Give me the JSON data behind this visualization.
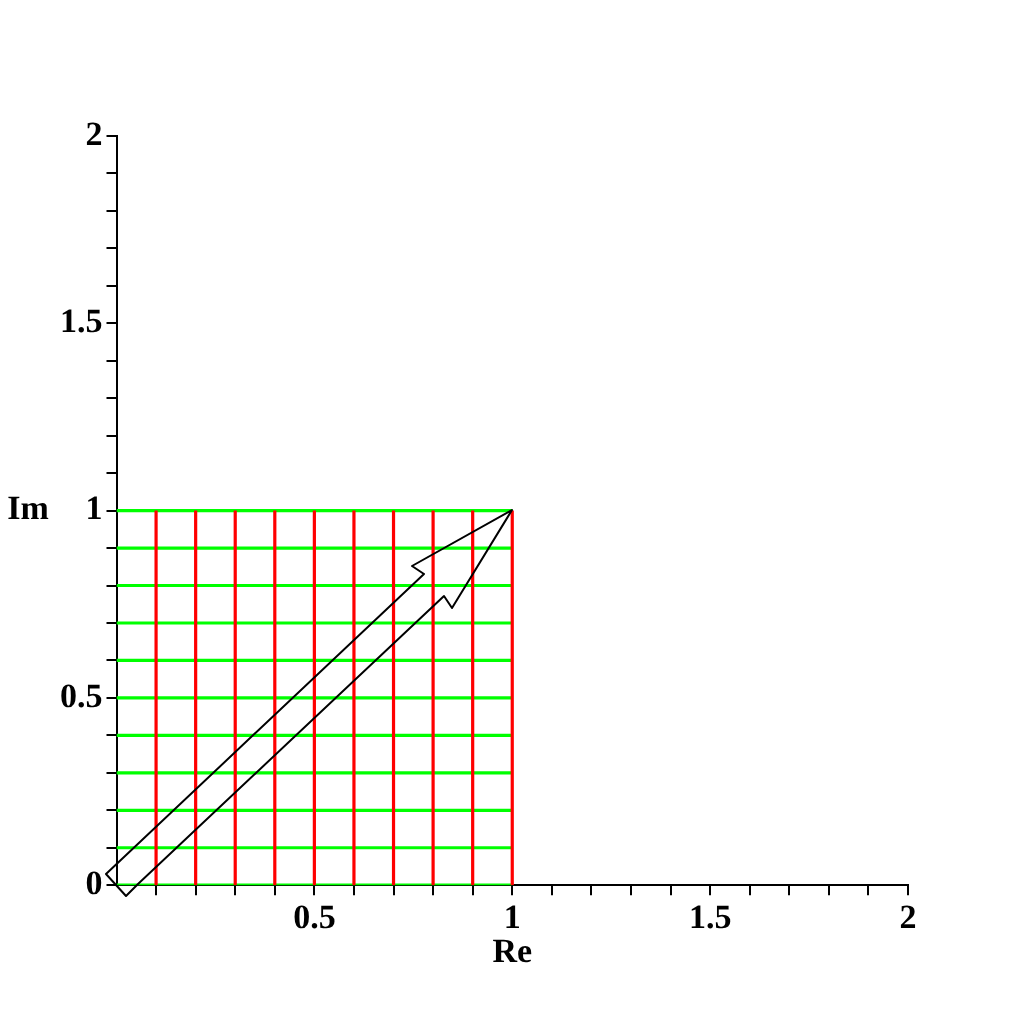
{
  "chart_data": {
    "type": "line",
    "xlabel": "Re",
    "ylabel": "Im",
    "xlim": [
      0,
      2
    ],
    "ylim": [
      0,
      2
    ],
    "xticks": [
      {
        "value": 0.1,
        "label": null
      },
      {
        "value": 0.2,
        "label": null
      },
      {
        "value": 0.3,
        "label": null
      },
      {
        "value": 0.4,
        "label": null
      },
      0.5,
      {
        "value": 0.6,
        "label": null
      },
      {
        "value": 0.7,
        "label": null
      },
      {
        "value": 0.8,
        "label": null
      },
      {
        "value": 0.9,
        "label": null
      },
      1,
      {
        "value": 1.1,
        "label": null
      },
      {
        "value": 1.2,
        "label": null
      },
      {
        "value": 1.3,
        "label": null
      },
      {
        "value": 1.4,
        "label": null
      },
      1.5,
      {
        "value": 1.6,
        "label": null
      },
      {
        "value": 1.7,
        "label": null
      },
      {
        "value": 1.8,
        "label": null
      },
      {
        "value": 1.9,
        "label": null
      },
      2
    ],
    "yticks": [
      0,
      {
        "value": 0.1,
        "label": null
      },
      {
        "value": 0.2,
        "label": null
      },
      {
        "value": 0.3,
        "label": null
      },
      {
        "value": 0.4,
        "label": null
      },
      0.5,
      {
        "value": 0.6,
        "label": null
      },
      {
        "value": 0.7,
        "label": null
      },
      {
        "value": 0.8,
        "label": null
      },
      {
        "value": 0.9,
        "label": null
      },
      1,
      {
        "value": 1.1,
        "label": null
      },
      {
        "value": 1.2,
        "label": null
      },
      {
        "value": 1.3,
        "label": null
      },
      {
        "value": 1.4,
        "label": null
      },
      1.5,
      {
        "value": 1.6,
        "label": null
      },
      {
        "value": 1.7,
        "label": null
      },
      {
        "value": 1.8,
        "label": null
      },
      {
        "value": 1.9,
        "label": null
      },
      2
    ],
    "grid": false,
    "legend": false,
    "marker": "none",
    "line_style": "solid",
    "series": [
      {
        "color": "#ff0000",
        "x": [
          0.1,
          0.1
        ],
        "values": [
          0,
          1
        ]
      },
      {
        "color": "#ff0000",
        "x": [
          0.2,
          0.2
        ],
        "values": [
          0,
          1
        ]
      },
      {
        "color": "#ff0000",
        "x": [
          0.3,
          0.3
        ],
        "values": [
          0,
          1
        ]
      },
      {
        "color": "#ff0000",
        "x": [
          0.4,
          0.4
        ],
        "values": [
          0,
          1
        ]
      },
      {
        "color": "#ff0000",
        "x": [
          0.5,
          0.5
        ],
        "values": [
          0,
          1
        ]
      },
      {
        "color": "#ff0000",
        "x": [
          0.6,
          0.6
        ],
        "values": [
          0,
          1
        ]
      },
      {
        "color": "#ff0000",
        "x": [
          0.7,
          0.7
        ],
        "values": [
          0,
          1
        ]
      },
      {
        "color": "#ff0000",
        "x": [
          0.8,
          0.8
        ],
        "values": [
          0,
          1
        ]
      },
      {
        "color": "#ff0000",
        "x": [
          0.9,
          0.9
        ],
        "values": [
          0,
          1
        ]
      },
      {
        "color": "#ff0000",
        "x": [
          1,
          1
        ],
        "values": [
          0,
          1
        ]
      },
      {
        "color": "#00ff00",
        "x": [
          0,
          1
        ],
        "values": [
          0,
          0
        ]
      },
      {
        "color": "#00ff00",
        "x": [
          0,
          1
        ],
        "values": [
          0.1,
          0.1
        ]
      },
      {
        "color": "#00ff00",
        "x": [
          0,
          1
        ],
        "values": [
          0.2,
          0.2
        ]
      },
      {
        "color": "#00ff00",
        "x": [
          0,
          1
        ],
        "values": [
          0.3,
          0.3
        ]
      },
      {
        "color": "#00ff00",
        "x": [
          0,
          1
        ],
        "values": [
          0.4,
          0.4
        ]
      },
      {
        "color": "#00ff00",
        "x": [
          0,
          1
        ],
        "values": [
          0.5,
          0.5
        ]
      },
      {
        "color": "#00ff00",
        "x": [
          0,
          1
        ],
        "values": [
          0.6,
          0.6
        ]
      },
      {
        "color": "#00ff00",
        "x": [
          0,
          1
        ],
        "values": [
          0.7,
          0.7
        ]
      },
      {
        "color": "#00ff00",
        "x": [
          0,
          1
        ],
        "values": [
          0.8,
          0.8
        ]
      },
      {
        "color": "#00ff00",
        "x": [
          0,
          1
        ],
        "values": [
          0.9,
          0.9
        ]
      },
      {
        "color": "#00ff00",
        "x": [
          0,
          1
        ],
        "values": [
          1,
          1
        ]
      }
    ]
  }
}
